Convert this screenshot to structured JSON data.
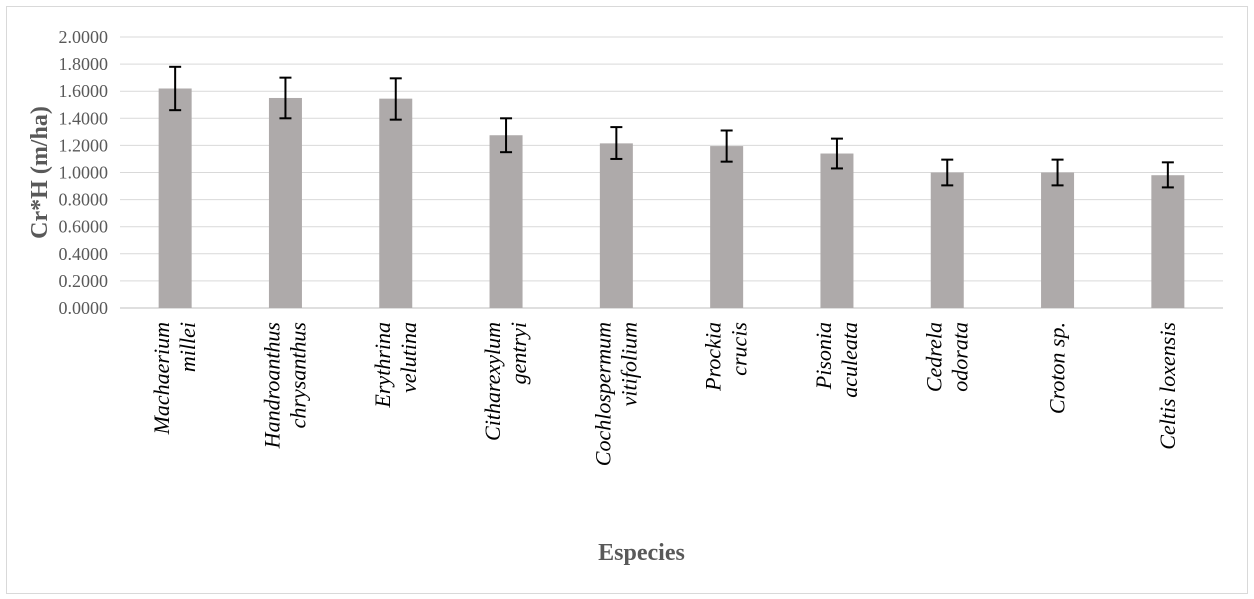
{
  "chart_data": {
    "type": "bar",
    "title": "",
    "xlabel": "Especies",
    "ylabel": "Cr*H (m/ha)",
    "ylim": [
      0,
      2
    ],
    "ytick_step": 0.2,
    "ytick_labels": [
      "0.0000",
      "0.2000",
      "0.4000",
      "0.6000",
      "0.8000",
      "1.0000",
      "1.2000",
      "1.4000",
      "1.6000",
      "1.8000",
      "2.0000"
    ],
    "grid": true,
    "legend": "none",
    "bar_color": "#aeaaaa",
    "categories": [
      [
        "Machaerium",
        "millei"
      ],
      [
        "Handroanthus",
        "chrysanthus"
      ],
      [
        "Erythrina",
        "velutina"
      ],
      [
        "Citharexylum",
        "gentryi"
      ],
      [
        "Cochlospermum",
        "vitifolium"
      ],
      [
        "Prockia",
        "crucis"
      ],
      [
        "Pisonia",
        "aculeata"
      ],
      [
        "Cedrela",
        "odorata"
      ],
      [
        "Croton sp."
      ],
      [
        "Celtis loxensis"
      ]
    ],
    "values": [
      1.62,
      1.55,
      1.545,
      1.275,
      1.215,
      1.195,
      1.14,
      1.0,
      1.0,
      0.98
    ],
    "error_low": [
      1.46,
      1.4,
      1.39,
      1.15,
      1.1,
      1.08,
      1.03,
      0.905,
      0.905,
      0.89
    ],
    "error_high": [
      1.78,
      1.7,
      1.695,
      1.4,
      1.335,
      1.31,
      1.25,
      1.095,
      1.095,
      1.075
    ]
  }
}
